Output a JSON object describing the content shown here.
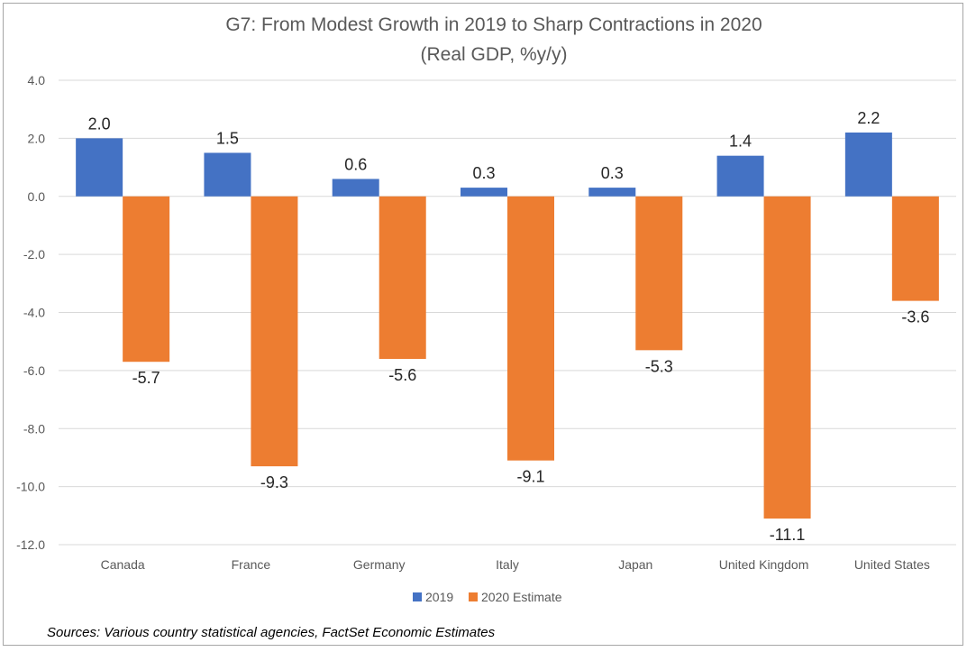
{
  "chart_data": {
    "type": "bar",
    "title": "G7: From Modest Growth in 2019 to Sharp Contractions in 2020",
    "subtitle": "(Real GDP, %y/y)",
    "categories": [
      "Canada",
      "France",
      "Germany",
      "Italy",
      "Japan",
      "United Kingdom",
      "United States"
    ],
    "series": [
      {
        "name": "2019",
        "color": "#4472c4",
        "values": [
          2.0,
          1.5,
          0.6,
          0.3,
          0.3,
          1.4,
          2.2
        ]
      },
      {
        "name": "2020 Estimate",
        "color": "#ed7d31",
        "values": [
          -5.7,
          -9.3,
          -5.6,
          -9.1,
          -5.3,
          -11.1,
          -3.6
        ]
      }
    ],
    "ylim": [
      -12,
      4
    ],
    "yticks": [
      "4.0",
      "2.0",
      "0.0",
      "-2.0",
      "-4.0",
      "-6.0",
      "-8.0",
      "-10.0",
      "-12.0"
    ],
    "data_labels": [
      [
        "2.0",
        "1.5",
        "0.6",
        "0.3",
        "0.3",
        "1.4",
        "2.2"
      ],
      [
        "-5.7",
        "-9.3",
        "-5.6",
        "-9.1",
        "-5.3",
        "-11.1",
        "-3.6"
      ]
    ],
    "grid": true,
    "legend_position": "bottom",
    "gridline_color": "#d9d9d9"
  },
  "source_text": "Sources: Various country statistical agencies, FactSet Economic Estimates"
}
